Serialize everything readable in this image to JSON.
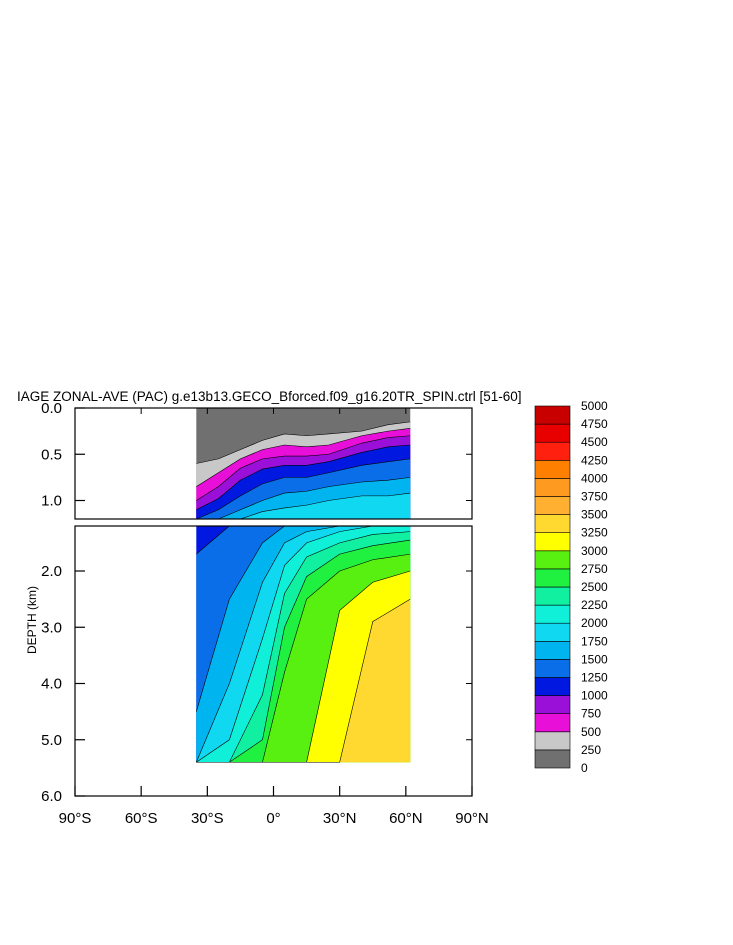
{
  "chart_data": {
    "type": "contour",
    "title": "IAGE ZONAL-AVE (PAC) g.e13b13.GECO_Bforced.f09_g16.20TR_SPIN.ctrl [51-60]",
    "ylabel": "DEPTH (km)",
    "x_ticks": [
      "90°S",
      "60°S",
      "30°S",
      "0°",
      "30°N",
      "60°N",
      "90°N"
    ],
    "xlim": [
      -90,
      90
    ],
    "upper_panel": {
      "ylim": [
        0.0,
        1.2
      ],
      "y_ticks": [
        "0.0",
        "0.5",
        "1.0"
      ]
    },
    "lower_panel": {
      "ylim": [
        1.2,
        6.0
      ],
      "y_ticks": [
        "2.0",
        "3.0",
        "4.0",
        "5.0",
        "6.0"
      ]
    },
    "levels": [
      0,
      250,
      500,
      750,
      1000,
      1250,
      1500,
      1750,
      2000,
      2250,
      2500,
      2750,
      3000,
      3250,
      3500,
      3750,
      4000,
      4250,
      4500,
      4750,
      5000
    ],
    "colorbar_labels": [
      "5000",
      "4750",
      "4500",
      "4250",
      "4000",
      "3750",
      "3500",
      "3250",
      "3000",
      "2750",
      "2500",
      "2250",
      "2000",
      "1750",
      "1500",
      "1250",
      "1000",
      "750",
      "500",
      "250",
      "0"
    ],
    "colors": [
      "#707070",
      "#c8c8c8",
      "#e810d8",
      "#9a10d8",
      "#0018e0",
      "#0a6ee8",
      "#00b4f0",
      "#10d8f0",
      "#10f0d8",
      "#10f0a0",
      "#20f040",
      "#58f010",
      "#ffff00",
      "#ffd830",
      "#ffb030",
      "#ff9a20",
      "#ff8000",
      "#ff2010",
      "#e80000",
      "#c80000"
    ],
    "data_extent": {
      "lon_min": -35,
      "lon_max": 62,
      "max_depth_km": 5.4
    },
    "upper_iso": [
      {
        "level": 250,
        "depth_km": [
          0.6,
          0.55,
          0.45,
          0.35,
          0.28,
          0.3,
          0.28,
          0.25,
          0.18,
          0.15
        ]
      },
      {
        "level": 500,
        "depth_km": [
          0.85,
          0.7,
          0.55,
          0.45,
          0.4,
          0.42,
          0.4,
          0.3,
          0.25,
          0.22
        ]
      },
      {
        "level": 750,
        "depth_km": [
          1.0,
          0.85,
          0.65,
          0.55,
          0.52,
          0.52,
          0.5,
          0.38,
          0.32,
          0.3
        ]
      },
      {
        "level": 1000,
        "depth_km": [
          1.1,
          0.98,
          0.78,
          0.66,
          0.62,
          0.62,
          0.58,
          0.48,
          0.42,
          0.4
        ]
      },
      {
        "level": 1250,
        "depth_km": [
          1.2,
          1.1,
          0.95,
          0.82,
          0.75,
          0.75,
          0.7,
          0.62,
          0.58,
          0.55
        ]
      },
      {
        "level": 1500,
        "depth_km": [
          1.2,
          1.2,
          1.1,
          1.0,
          0.92,
          0.9,
          0.85,
          0.8,
          0.78,
          0.75
        ]
      },
      {
        "level": 1750,
        "depth_km": [
          1.2,
          1.2,
          1.2,
          1.12,
          1.08,
          1.05,
          1.0,
          0.95,
          0.95,
          0.92
        ]
      }
    ],
    "upper_iso_lon": [
      -35,
      -25,
      -15,
      -5,
      5,
      15,
      25,
      40,
      52,
      62
    ],
    "lower_iso": [
      {
        "level": 1250,
        "depth_km": [
          1.7,
          1.2,
          1.2,
          1.2,
          1.2,
          1.2,
          1.2,
          1.2
        ]
      },
      {
        "level": 1500,
        "depth_km": [
          4.5,
          2.5,
          1.5,
          1.2,
          1.2,
          1.2,
          1.2,
          1.2
        ]
      },
      {
        "level": 1750,
        "depth_km": [
          5.4,
          4.0,
          2.2,
          1.5,
          1.3,
          1.2,
          1.2,
          1.2
        ]
      },
      {
        "level": 2000,
        "depth_km": [
          5.4,
          5.0,
          3.2,
          1.9,
          1.5,
          1.3,
          1.2,
          1.2
        ]
      },
      {
        "level": 2250,
        "depth_km": [
          5.4,
          5.4,
          4.2,
          2.4,
          1.75,
          1.5,
          1.35,
          1.3
        ]
      },
      {
        "level": 2500,
        "depth_km": [
          5.4,
          5.4,
          5.0,
          3.0,
          2.1,
          1.7,
          1.55,
          1.45
        ]
      },
      {
        "level": 2750,
        "depth_km": [
          5.4,
          5.4,
          5.4,
          3.8,
          2.5,
          2.0,
          1.8,
          1.7
        ]
      },
      {
        "level": 3000,
        "depth_km": [
          5.4,
          5.4,
          5.4,
          5.4,
          5.4,
          2.7,
          2.2,
          2.0
        ]
      },
      {
        "level": 3250,
        "depth_km": [
          5.4,
          5.4,
          5.4,
          5.4,
          5.4,
          5.4,
          2.9,
          2.5
        ]
      }
    ],
    "lower_iso_lon": [
      -35,
      -20,
      -5,
      5,
      15,
      30,
      45,
      62
    ]
  }
}
